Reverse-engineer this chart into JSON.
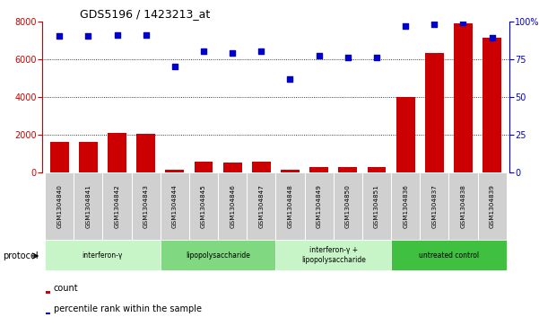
{
  "title": "GDS5196 / 1423213_at",
  "samples": [
    "GSM1304840",
    "GSM1304841",
    "GSM1304842",
    "GSM1304843",
    "GSM1304844",
    "GSM1304845",
    "GSM1304846",
    "GSM1304847",
    "GSM1304848",
    "GSM1304849",
    "GSM1304850",
    "GSM1304851",
    "GSM1304836",
    "GSM1304837",
    "GSM1304838",
    "GSM1304839"
  ],
  "counts": [
    1650,
    1650,
    2100,
    2050,
    150,
    600,
    550,
    600,
    150,
    280,
    280,
    280,
    4000,
    6300,
    7900,
    7150
  ],
  "percentile_ranks": [
    90,
    90,
    91,
    91,
    70,
    80,
    79,
    80,
    62,
    77,
    76,
    76,
    97,
    98,
    99,
    89
  ],
  "protocols": [
    {
      "label": "interferon-γ",
      "start": 0,
      "end": 3,
      "color": "#c8f5c8"
    },
    {
      "label": "lipopolysaccharide",
      "start": 4,
      "end": 7,
      "color": "#80d880"
    },
    {
      "label": "interferon-γ +\nlipopolysaccharide",
      "start": 8,
      "end": 11,
      "color": "#c8f5c8"
    },
    {
      "label": "untreated control",
      "start": 12,
      "end": 15,
      "color": "#40c040"
    }
  ],
  "bar_color": "#cc0000",
  "dot_color": "#0000cc",
  "left_ylim": [
    0,
    8000
  ],
  "right_ylim": [
    0,
    100
  ],
  "left_yticks": [
    0,
    2000,
    4000,
    6000,
    8000
  ],
  "right_yticks": [
    0,
    25,
    50,
    75,
    100
  ],
  "right_yticklabels": [
    "0",
    "25",
    "50",
    "75",
    "100%"
  ],
  "grid_values": [
    2000,
    4000,
    6000
  ],
  "bg_color": "#ffffff",
  "tick_label_color": "#cc0000",
  "right_tick_color": "#0000cc",
  "protocol_label": "protocol",
  "sample_box_color": "#d0d0d0",
  "legend_count_label": "count",
  "legend_pct_label": "percentile rank within the sample"
}
